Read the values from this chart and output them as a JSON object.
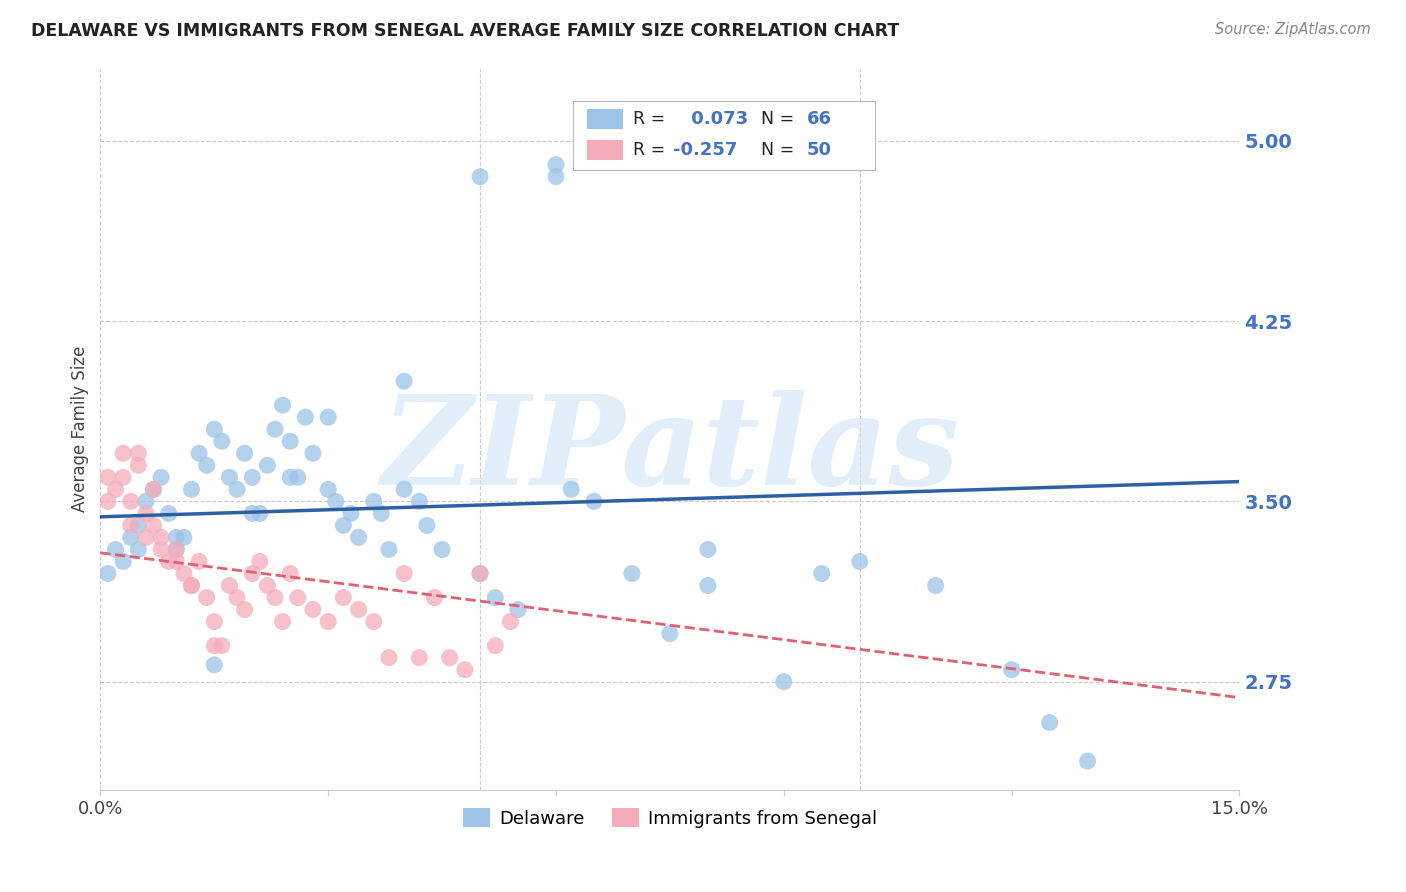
{
  "title": "DELAWARE VS IMMIGRANTS FROM SENEGAL AVERAGE FAMILY SIZE CORRELATION CHART",
  "source": "Source: ZipAtlas.com",
  "ylabel": "Average Family Size",
  "watermark": "ZIPatlas",
  "xlim": [
    0.0,
    0.15
  ],
  "ylim": [
    2.3,
    5.3
  ],
  "yticks_right": [
    2.75,
    3.5,
    4.25,
    5.0
  ],
  "right_tick_color": "#4472C4",
  "blue_color": "#9DC3E6",
  "pink_color": "#F4ACBA",
  "blue_line_color": "#2E5FA3",
  "pink_line_color": "#E06070",
  "R_blue": 0.073,
  "N_blue": 66,
  "R_pink": -0.257,
  "N_pink": 50,
  "blue_scatter_x": [
    0.001,
    0.002,
    0.003,
    0.004,
    0.005,
    0.006,
    0.007,
    0.008,
    0.009,
    0.01,
    0.011,
    0.012,
    0.013,
    0.014,
    0.015,
    0.016,
    0.017,
    0.018,
    0.019,
    0.02,
    0.021,
    0.022,
    0.023,
    0.024,
    0.025,
    0.026,
    0.027,
    0.028,
    0.03,
    0.031,
    0.032,
    0.033,
    0.034,
    0.036,
    0.037,
    0.038,
    0.04,
    0.042,
    0.043,
    0.045,
    0.05,
    0.052,
    0.055,
    0.06,
    0.062,
    0.065,
    0.07,
    0.075,
    0.08,
    0.09,
    0.095,
    0.1,
    0.11,
    0.12,
    0.125,
    0.13,
    0.005,
    0.01,
    0.015,
    0.02,
    0.025,
    0.03,
    0.04,
    0.05,
    0.06,
    0.08
  ],
  "blue_scatter_y": [
    3.2,
    3.3,
    3.25,
    3.35,
    3.4,
    3.5,
    3.55,
    3.6,
    3.45,
    3.3,
    3.35,
    3.55,
    3.7,
    3.65,
    3.8,
    3.75,
    3.6,
    3.55,
    3.7,
    3.6,
    3.45,
    3.65,
    3.8,
    3.9,
    3.75,
    3.6,
    3.85,
    3.7,
    3.55,
    3.5,
    3.4,
    3.45,
    3.35,
    3.5,
    3.45,
    3.3,
    3.55,
    3.5,
    3.4,
    3.3,
    3.2,
    3.1,
    3.05,
    4.9,
    3.55,
    3.5,
    3.2,
    2.95,
    3.15,
    2.75,
    3.2,
    3.25,
    3.15,
    2.8,
    2.58,
    2.42,
    3.3,
    3.35,
    2.82,
    3.45,
    3.6,
    3.85,
    4.0,
    4.85,
    4.85,
    3.3
  ],
  "pink_scatter_x": [
    0.001,
    0.002,
    0.003,
    0.004,
    0.005,
    0.006,
    0.007,
    0.008,
    0.009,
    0.01,
    0.011,
    0.012,
    0.013,
    0.014,
    0.015,
    0.016,
    0.017,
    0.018,
    0.019,
    0.02,
    0.021,
    0.022,
    0.023,
    0.024,
    0.025,
    0.026,
    0.028,
    0.03,
    0.032,
    0.034,
    0.036,
    0.038,
    0.04,
    0.042,
    0.044,
    0.046,
    0.048,
    0.05,
    0.052,
    0.054,
    0.001,
    0.003,
    0.004,
    0.005,
    0.006,
    0.007,
    0.008,
    0.01,
    0.012,
    0.015
  ],
  "pink_scatter_y": [
    3.6,
    3.55,
    3.7,
    3.5,
    3.65,
    3.45,
    3.4,
    3.35,
    3.25,
    3.3,
    3.2,
    3.15,
    3.25,
    3.1,
    3.0,
    2.9,
    3.15,
    3.1,
    3.05,
    3.2,
    3.25,
    3.15,
    3.1,
    3.0,
    3.2,
    3.1,
    3.05,
    3.0,
    3.1,
    3.05,
    3.0,
    2.85,
    3.2,
    2.85,
    3.1,
    2.85,
    2.8,
    3.2,
    2.9,
    3.0,
    3.5,
    3.6,
    3.4,
    3.7,
    3.35,
    3.55,
    3.3,
    3.25,
    3.15,
    2.9
  ]
}
